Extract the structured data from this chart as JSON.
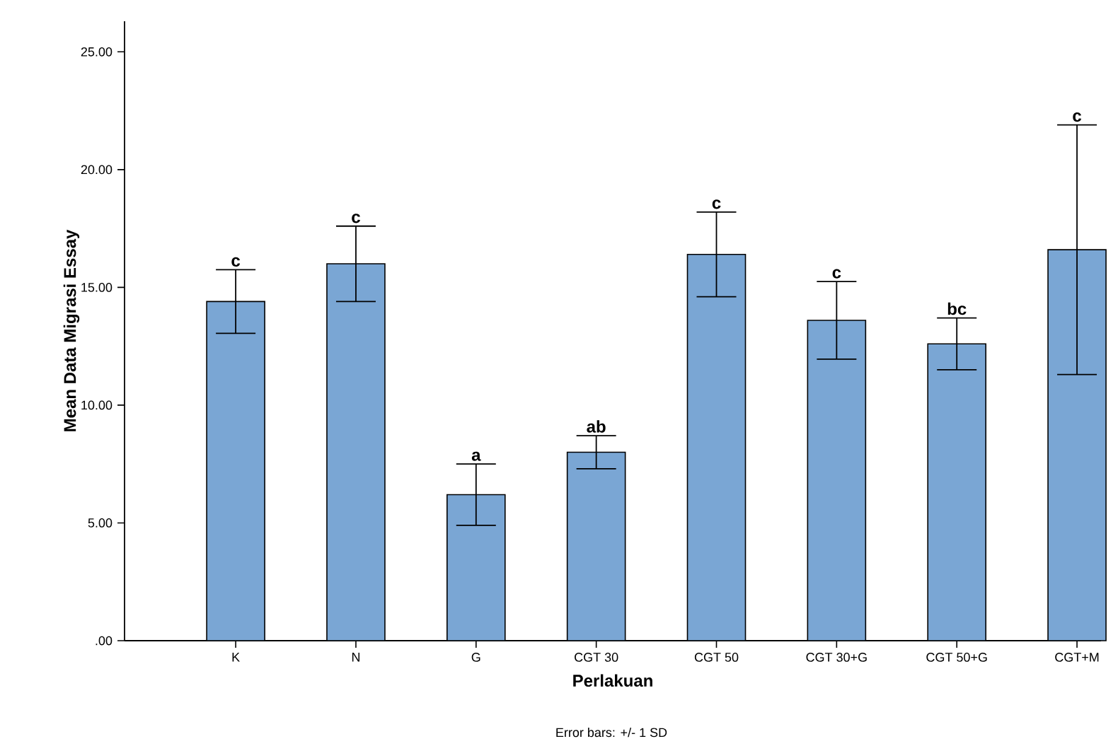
{
  "chart_data": {
    "type": "bar",
    "xlabel": "Perlakuan",
    "ylabel": "Mean Data Migrasi Essay",
    "categories": [
      "K",
      "N",
      "G",
      "CGT 30",
      "CGT 50",
      "CGT 30+G",
      "CGT 50+G",
      "CGT+M"
    ],
    "values": [
      14.4,
      16.0,
      6.2,
      8.0,
      16.4,
      13.6,
      12.6,
      16.6
    ],
    "errors": [
      1.35,
      1.6,
      1.3,
      0.7,
      1.8,
      1.65,
      1.1,
      5.3
    ],
    "color": "#7aa6d4",
    "ylim": [
      0,
      26.3
    ],
    "yticks": [
      {
        "value": 0,
        "label": ".00"
      },
      {
        "value": 5,
        "label": "5.00"
      },
      {
        "value": 10,
        "label": "10.00"
      },
      {
        "value": 15,
        "label": "15.00"
      },
      {
        "value": 20,
        "label": "20.00"
      },
      {
        "value": 25,
        "label": "25.00"
      }
    ],
    "annotations": [
      {
        "text": "c",
        "x": "K",
        "y": 15.75
      },
      {
        "text": "c",
        "x": "N",
        "y": 17.6
      },
      {
        "text": "a",
        "x": "G",
        "y": 7.5
      },
      {
        "text": "ab",
        "x": "CGT 30",
        "y": 8.7
      },
      {
        "text": "c",
        "x": "CGT 50",
        "y": 18.2
      },
      {
        "text": "c",
        "x": "CGT 30+G",
        "y": 15.25
      },
      {
        "text": "bc",
        "x": "CGT 50+G",
        "y": 13.7
      },
      {
        "text": "c",
        "x": "CGT+M",
        "y": 21.9
      },
      "Error bars: +/- 1 SD"
    ]
  }
}
